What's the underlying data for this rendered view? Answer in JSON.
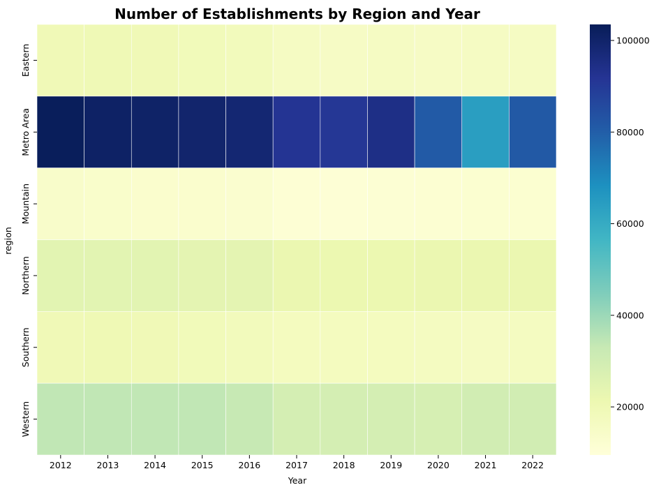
{
  "chart_data": {
    "type": "heatmap",
    "title": "Number of Establishments by Region and Year",
    "xlabel": "Year",
    "ylabel": "region",
    "x_categories": [
      "2012",
      "2013",
      "2014",
      "2015",
      "2016",
      "2017",
      "2018",
      "2019",
      "2020",
      "2021",
      "2022"
    ],
    "y_categories": [
      "Eastern",
      "Metro Area",
      "Mountain",
      "Northern",
      "Southern",
      "Western"
    ],
    "values": [
      [
        19500,
        19800,
        19500,
        18500,
        18000,
        16000,
        15500,
        16000,
        15500,
        16000,
        16000
      ],
      [
        103000,
        101000,
        100500,
        99500,
        98500,
        92000,
        91000,
        94500,
        81000,
        64000,
        81500
      ],
      [
        14000,
        13500,
        13000,
        13000,
        12500,
        11000,
        10800,
        11200,
        11500,
        12000,
        12000
      ],
      [
        24500,
        24500,
        24500,
        24000,
        24000,
        22000,
        21500,
        21500,
        22000,
        22000,
        22000
      ],
      [
        19500,
        20000,
        19500,
        18500,
        18000,
        17000,
        17000,
        17000,
        16500,
        16000,
        16500
      ],
      [
        34000,
        34000,
        34000,
        34000,
        33000,
        29000,
        29000,
        29000,
        28500,
        30000,
        30000
      ]
    ],
    "colorbar": {
      "colormap": "YlGnBu",
      "vmin": 9500,
      "vmax": 103500,
      "ticks": [
        20000,
        40000,
        60000,
        80000,
        100000
      ],
      "tick_labels": [
        "20000",
        "40000",
        "60000",
        "80000",
        "100000"
      ]
    },
    "grid": false,
    "cell_border_color": "#ffffff"
  }
}
